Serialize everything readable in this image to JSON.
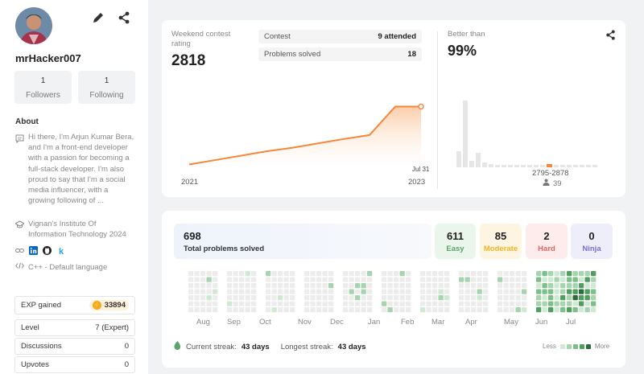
{
  "profile": {
    "username": "mrHacker007",
    "followers_count": "1",
    "followers_label": "Followers",
    "following_count": "1",
    "following_label": "Following",
    "about_heading": "About",
    "about_text": "Hi there, I'm Arjun Kumar Bera, and I'm a front-end developer with a passion for becoming a full-stack developer. I'm also proud to say that I'm a social media influencer, with a growing following of ...",
    "education": "Vignan's Institute Of Information Technology 2024",
    "language": "C++ - Default language",
    "link_k": "k"
  },
  "stats": {
    "exp_label": "EXP gained",
    "exp_value": "33894",
    "level_label": "Level",
    "level_value": "7 (Expert)",
    "discussions_label": "Discussions",
    "discussions_value": "0",
    "upvotes_label": "Upvotes",
    "upvotes_value": "0"
  },
  "contest": {
    "label": "Weekend contest rating",
    "rating": "2818",
    "contest_label": "Contest",
    "contest_value": "9 attended",
    "problems_label": "Problems solved",
    "problems_value": "18",
    "year_start": "2021",
    "year_end": "2023",
    "last_point_label": "Jul 31",
    "better_than_label": "Better than",
    "better_than_value": "99%",
    "range_label": "2795-2878",
    "range_people": "39"
  },
  "chart_data": {
    "type": "area",
    "x": [
      "2021",
      "2021-Q2",
      "2021-Q3",
      "2021-Q4",
      "2022",
      "2022-Q2",
      "2022-Q3",
      "2022-Q4",
      "2023-Q1",
      "Jul 31 2023"
    ],
    "values": [
      1500,
      1600,
      1700,
      1800,
      1880,
      1980,
      2080,
      2170,
      2280,
      2818
    ],
    "title": "",
    "xlabel": "",
    "ylabel": "",
    "color": "#f5863a"
  },
  "problems": {
    "total": "698",
    "total_label": "Total problems solved",
    "easy": "611",
    "easy_label": "Easy",
    "easy_color": "#5aa469",
    "moderate": "85",
    "moderate_label": "Moderate",
    "moderate_color": "#f0b429",
    "hard": "2",
    "hard_label": "Hard",
    "hard_color": "#e06666",
    "ninja": "0",
    "ninja_label": "Ninja",
    "ninja_color": "#7b6fd6"
  },
  "heatmap": {
    "months": [
      "Aug",
      "Sep",
      "Oct",
      "Nov",
      "Dec",
      "Jan",
      "Feb",
      "Mar",
      "Apr",
      "May",
      "Jun",
      "Jul"
    ],
    "current_streak_label": "Current streak:",
    "current_streak_value": "43 days",
    "longest_streak_label": "Longest streak:",
    "longest_streak_value": "43 days",
    "legend_less": "Less",
    "legend_more": "More"
  }
}
